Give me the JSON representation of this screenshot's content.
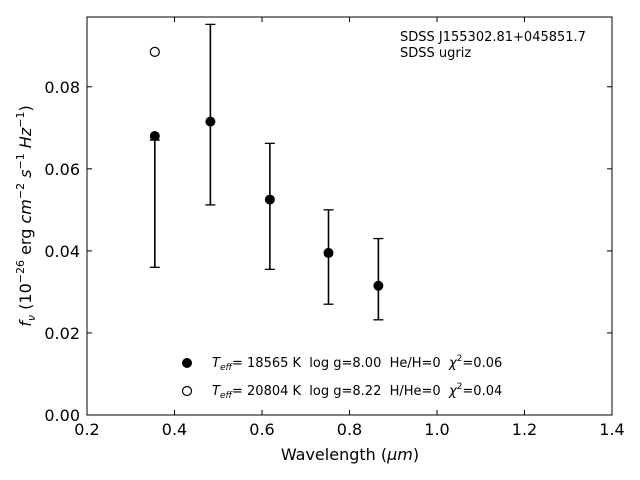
{
  "chart_data": {
    "type": "scatter",
    "xlabel": "Wavelength (",
    "xlabel_unit": "μm",
    "xlabel_close": ")",
    "ylabel": {
      "f": "f",
      "nu": "ν",
      "open": " (10",
      "exp1": "−26",
      "erg": " erg ",
      "cm": "cm",
      "exp2": "−2",
      "s": " s",
      "exp3": "−1",
      "hz": " Hz",
      "exp4": "−1",
      "close": ")"
    },
    "xlim": [
      0.2,
      1.4
    ],
    "ylim": [
      0.0,
      0.097
    ],
    "xticks": [
      0.2,
      0.4,
      0.6,
      0.8,
      1.0,
      1.2,
      1.4
    ],
    "yticks": [
      0.0,
      0.02,
      0.04,
      0.06,
      0.08
    ],
    "grid": false,
    "annotation": [
      "SDSS J155302.81+045851.7",
      "SDSS ugriz"
    ],
    "observed": {
      "x": [
        0.355,
        0.482,
        0.618,
        0.752,
        0.866
      ],
      "y": [
        0.068,
        0.0715,
        0.0525,
        0.0395,
        0.0315
      ],
      "yerr_low": [
        0.036,
        0.0512,
        0.0355,
        0.027,
        0.0232
      ],
      "yerr_high": [
        0.067,
        0.0952,
        0.0662,
        0.05,
        0.043
      ]
    },
    "series": [
      {
        "marker": "filled",
        "x": [
          0.355,
          0.482,
          0.618,
          0.752,
          0.866
        ],
        "y": [
          0.068,
          0.0715,
          0.0525,
          0.0395,
          0.0315
        ],
        "legend": {
          "T": "T",
          "sub": "eff",
          "text": "= 18565 K  log g=8.00  He/H=0  ",
          "chi": "χ",
          "sup": "2",
          "chi_val": "=0.06"
        }
      },
      {
        "marker": "open",
        "x": [
          0.355
        ],
        "y": [
          0.0885
        ],
        "legend": {
          "T": "T",
          "sub": "eff",
          "text": "= 20804 K  log g=8.22  H/He=0  ",
          "chi": "χ",
          "sup": "2",
          "chi_val": "=0.04"
        }
      }
    ]
  }
}
